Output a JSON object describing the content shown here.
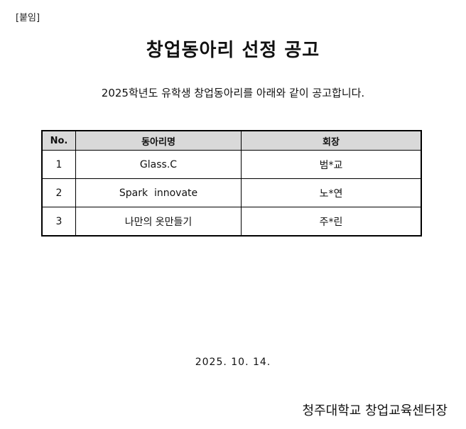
{
  "attachment_label": "[붙임]",
  "title": "창업동아리 선정 공고",
  "intro": "2025학년도 유학생 창업동아리를 아래와 같이 공고합니다.",
  "table": {
    "headers": [
      "No.",
      "동아리명",
      "회장"
    ],
    "rows": [
      [
        "1",
        "Glass.C",
        "범*교"
      ],
      [
        "2",
        "Spark  innovate",
        "노*연"
      ],
      [
        "3",
        "나만의 옷만들기",
        "주*린"
      ]
    ]
  },
  "date": "2025. 10. 14.",
  "signature": "청주대학교 창업교육센터장"
}
